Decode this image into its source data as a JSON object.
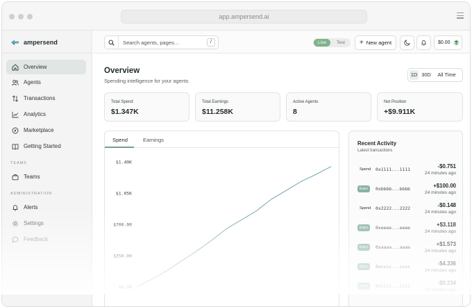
{
  "browser": {
    "url": "app.ampersend.ai"
  },
  "brand": {
    "name": "ampersend"
  },
  "sidebar": {
    "items": [
      {
        "label": "Overview",
        "icon": "home-icon"
      },
      {
        "label": "Agents",
        "icon": "users-icon"
      },
      {
        "label": "Transactions",
        "icon": "arrows-up-down-icon"
      },
      {
        "label": "Analytics",
        "icon": "line-chart-icon"
      },
      {
        "label": "Marketplace",
        "icon": "compass-icon"
      },
      {
        "label": "Getting Started",
        "icon": "book-icon"
      }
    ],
    "teams_label": "TEAMS",
    "teams_items": [
      {
        "label": "Teams",
        "icon": "briefcase-icon"
      }
    ],
    "admin_label": "ADMINISTRATION",
    "admin_items": [
      {
        "label": "Alerts",
        "icon": "bell-icon"
      },
      {
        "label": "Settings",
        "icon": "gear-icon"
      },
      {
        "label": "Feedback",
        "icon": "message-icon"
      }
    ]
  },
  "topbar": {
    "search_placeholder": "Search agents, pages...",
    "search_shortcut": "/",
    "mode_live": "Live",
    "mode_test": "Test",
    "new_agent": "New agent",
    "balance": "$0.00"
  },
  "overview": {
    "title": "Overview",
    "subtitle": "Spending intelligence for your agents",
    "ranges": [
      "1D",
      "30D",
      "All Time"
    ],
    "selected_range": "1D"
  },
  "stats": [
    {
      "label": "Total Spend",
      "value": "$1.347K"
    },
    {
      "label": "Total Earnings",
      "value": "$11.258K"
    },
    {
      "label": "Active Agents",
      "value": "8"
    },
    {
      "label": "Net Position",
      "value": "+$9.911K"
    }
  ],
  "chart_tabs": {
    "spend": "Spend",
    "earnings": "Earnings",
    "selected": "Spend"
  },
  "chart_data": {
    "type": "line",
    "series": [
      {
        "values": [
          0,
          85,
          180,
          290,
          400,
          520,
          650,
          750,
          850,
          980,
          1080,
          1180,
          1260,
          1347
        ]
      }
    ],
    "x": [
      0,
      1,
      2,
      3,
      4,
      5,
      6,
      7,
      8,
      9,
      10,
      11,
      12,
      13
    ],
    "y_ticks": [
      "$1.40K",
      "$1.05K",
      "$700.00",
      "$350.00",
      "$0.00"
    ],
    "ylim": [
      0,
      1400
    ],
    "grid": false,
    "color": "#7fa9b5"
  },
  "activity": {
    "title": "Recent Activity",
    "subtitle": "Latest transactions",
    "items": [
      {
        "type": "Spend",
        "id": "0x1111...1111",
        "amount": "-$0.751",
        "time": "24 minutes ago"
      },
      {
        "type": "Earn",
        "id": "0xbbbb...bbbb",
        "amount": "+$100.00",
        "time": "24 minutes ago"
      },
      {
        "type": "Spend",
        "id": "0x2222...2222",
        "amount": "-$0.148",
        "time": "24 minutes ago"
      },
      {
        "type": "Earn",
        "id": "0xeeee...eeee",
        "amount": "+$3.118",
        "time": "24 minutes ago"
      },
      {
        "type": "Earn",
        "id": "0xaaaa...aaaa",
        "amount": "+$1.573",
        "time": "24 minutes ago"
      },
      {
        "type": "Earn",
        "id": "0xcccc...cccc",
        "amount": "-$4.336",
        "time": "24 minutes ago"
      },
      {
        "type": "Earn",
        "id": "0x1111...1111",
        "amount": "-$0.234",
        "time": "24 minutes ago"
      }
    ]
  },
  "colors": {
    "accent": "#7fb28d",
    "nav_active": "#dfe6e4",
    "line": "#7fa9b5"
  }
}
